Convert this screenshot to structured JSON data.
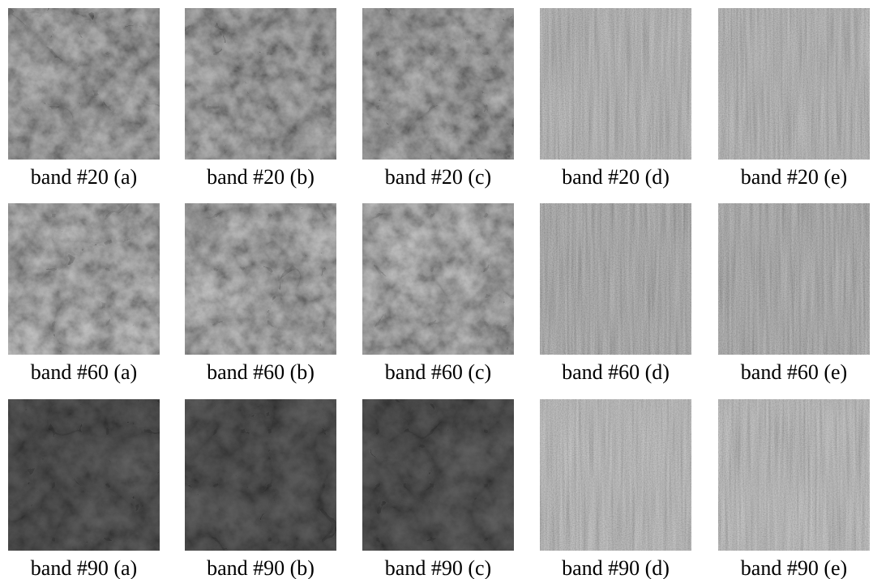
{
  "rows": [
    [
      "band #20 (a)",
      "band #20 (b)",
      "band #20 (c)",
      "band #20 (d)",
      "band #20 (e)"
    ],
    [
      "band #60 (a)",
      "band #60 (b)",
      "band #60 (c)",
      "band #60 (d)",
      "band #60 (e)"
    ],
    [
      "band #90 (a)",
      "band #90 (b)",
      "band #90 (c)",
      "band #90 (d)",
      "band #90 (e)"
    ]
  ]
}
